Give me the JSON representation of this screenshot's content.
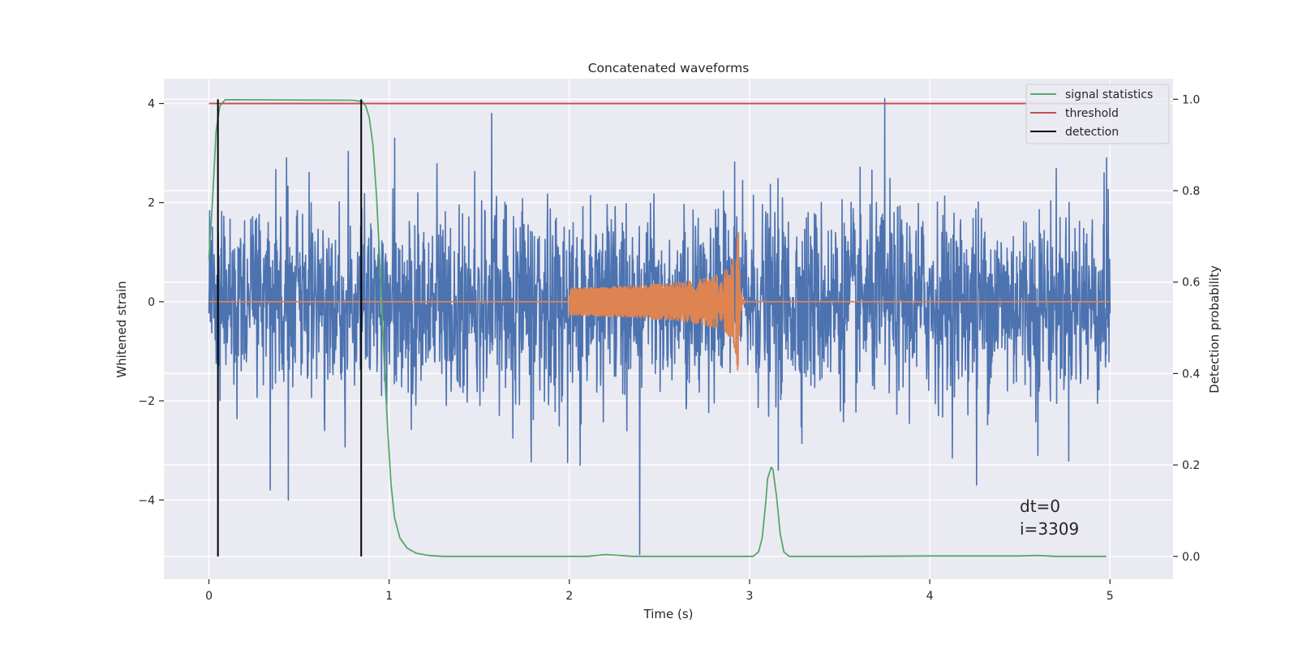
{
  "chart_data": {
    "type": "line",
    "title": "Concatenated waveforms",
    "xlabel": "Time (s)",
    "ylabel": "Whitened strain",
    "ylabel_right": "Detection probability",
    "xlim": [
      -0.25,
      5.35
    ],
    "ylim": [
      -5.6,
      4.5
    ],
    "ylim_right": [
      -0.05,
      1.045
    ],
    "xticks": [
      0,
      1,
      2,
      3,
      4,
      5
    ],
    "yticks": [
      -4,
      -2,
      0,
      2,
      4
    ],
    "yticks_right": [
      0.0,
      0.2,
      0.4,
      0.6,
      0.8,
      1.0
    ],
    "xtick_labels": [
      "0",
      "1",
      "2",
      "3",
      "4",
      "5"
    ],
    "ytick_labels": [
      "−4",
      "−2",
      "0",
      "2",
      "4"
    ],
    "ytick_labels_right": [
      "0.0",
      "0.2",
      "0.4",
      "0.6",
      "0.8",
      "1.0"
    ],
    "grid": true,
    "legend_position": "top-right",
    "colors": {
      "background": "#eaeaf2",
      "strain": "#4c72b0",
      "waveform": "#dd8452",
      "signal_statistics": "#55a868",
      "threshold": "#c44e52",
      "detection": "#000000"
    },
    "series": [
      {
        "name": "",
        "axis": "left",
        "kind": "noise",
        "x_range": [
          0,
          5
        ],
        "std": 0.95,
        "spikes": [
          {
            "x": 0.34,
            "y": -3.8
          },
          {
            "x": 0.44,
            "y": -4.0
          },
          {
            "x": 0.43,
            "y": 2.9
          },
          {
            "x": 1.03,
            "y": 3.3
          },
          {
            "x": 1.57,
            "y": 3.8
          },
          {
            "x": 2.06,
            "y": -3.3
          },
          {
            "x": 2.39,
            "y": -5.1
          },
          {
            "x": 3.16,
            "y": -3.4
          },
          {
            "x": 3.75,
            "y": 4.1
          },
          {
            "x": 4.26,
            "y": -3.7
          },
          {
            "x": 4.6,
            "y": -3.1
          },
          {
            "x": 4.98,
            "y": 2.9
          }
        ]
      },
      {
        "name": "",
        "axis": "left",
        "kind": "chirp",
        "x_range": [
          0,
          5
        ],
        "chirp_start": 2.0,
        "merger": 2.94,
        "peak_amplitude": 1.5
      },
      {
        "name": "signal statistics",
        "axis": "right",
        "points": [
          [
            0.0,
            0.65
          ],
          [
            0.02,
            0.78
          ],
          [
            0.04,
            0.93
          ],
          [
            0.06,
            0.985
          ],
          [
            0.09,
            0.999
          ],
          [
            0.8,
            0.998
          ],
          [
            0.85,
            0.995
          ],
          [
            0.87,
            0.985
          ],
          [
            0.89,
            0.96
          ],
          [
            0.91,
            0.9
          ],
          [
            0.93,
            0.79
          ],
          [
            0.95,
            0.63
          ],
          [
            0.97,
            0.45
          ],
          [
            0.99,
            0.29
          ],
          [
            1.01,
            0.16
          ],
          [
            1.03,
            0.085
          ],
          [
            1.06,
            0.04
          ],
          [
            1.1,
            0.018
          ],
          [
            1.15,
            0.007
          ],
          [
            1.22,
            0.002
          ],
          [
            1.3,
            0.0
          ],
          [
            2.1,
            0.0
          ],
          [
            2.2,
            0.004
          ],
          [
            2.28,
            0.002
          ],
          [
            2.35,
            0.0
          ],
          [
            3.02,
            0.0
          ],
          [
            3.05,
            0.01
          ],
          [
            3.07,
            0.04
          ],
          [
            3.09,
            0.12
          ],
          [
            3.1,
            0.17
          ],
          [
            3.12,
            0.195
          ],
          [
            3.13,
            0.19
          ],
          [
            3.15,
            0.13
          ],
          [
            3.17,
            0.05
          ],
          [
            3.19,
            0.01
          ],
          [
            3.22,
            0.0
          ],
          [
            3.6,
            0.0
          ],
          [
            4.0,
            0.001
          ],
          [
            4.5,
            0.001
          ],
          [
            4.6,
            0.002
          ],
          [
            4.7,
            0.0
          ],
          [
            4.98,
            0.0
          ]
        ]
      },
      {
        "name": "threshold",
        "axis": "left",
        "points": [
          [
            0.0,
            4.0
          ],
          [
            5.0,
            4.0
          ]
        ]
      },
      {
        "name": "detection",
        "axis": "right",
        "kind": "vlines",
        "x": [
          0.05,
          0.845
        ],
        "y_range": [
          0.0,
          1.0
        ]
      }
    ],
    "annotations": [
      "dt=0",
      "i=3309"
    ]
  }
}
